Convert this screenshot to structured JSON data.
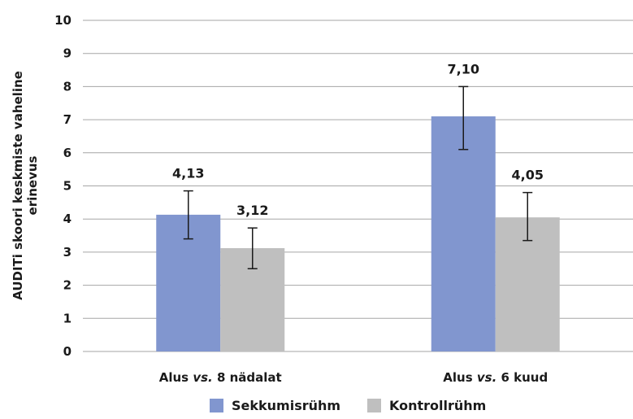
{
  "chart_data": {
    "type": "bar",
    "title": "",
    "xlabel": "",
    "ylabel": "AUDITi skoori keskmiste vaheline erinevus",
    "ylabel_lines": [
      "AUDITi skoori keskmiste vaheline",
      "erinevus"
    ],
    "ylim": [
      0,
      10
    ],
    "yticks": [
      0,
      1,
      2,
      3,
      4,
      5,
      6,
      7,
      8,
      9,
      10
    ],
    "grid": true,
    "legend_position": "bottom",
    "categories": [
      {
        "pre": "Alus ",
        "em": "vs.",
        "post": " 8 nädalat"
      },
      {
        "pre": "Alus ",
        "em": "vs.",
        "post": " 6 kuud"
      }
    ],
    "series": [
      {
        "name": "Sekkumisrühm",
        "color": "#8196cf",
        "values": [
          4.13,
          7.1
        ],
        "labels": [
          "4,13",
          "7,10"
        ],
        "error_low": [
          3.4,
          6.1
        ],
        "error_high": [
          4.85,
          8.0
        ]
      },
      {
        "name": "Kontrollrühm",
        "color": "#bfbfbf",
        "values": [
          3.12,
          4.05
        ],
        "labels": [
          "3,12",
          "4,05"
        ],
        "error_low": [
          2.5,
          3.35
        ],
        "error_high": [
          3.73,
          4.8
        ]
      }
    ]
  }
}
